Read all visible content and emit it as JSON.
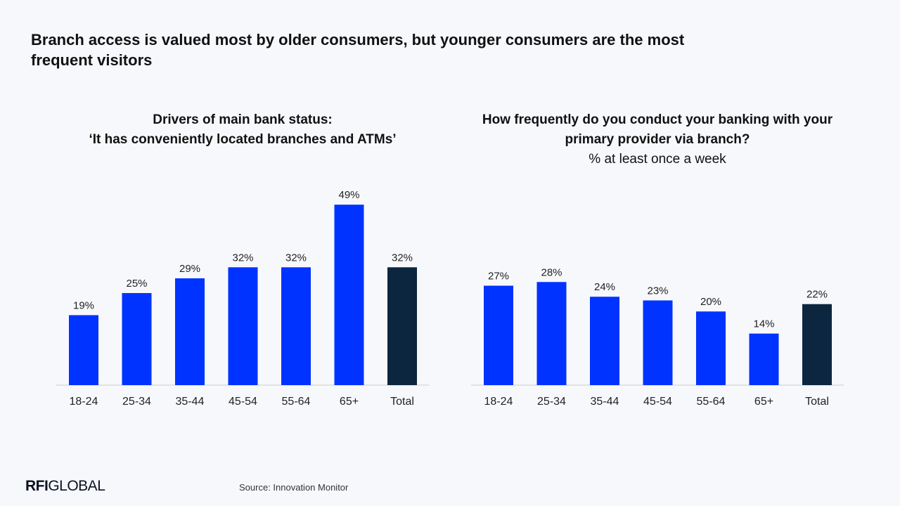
{
  "headline": "Branch access is valued most by older consumers, but younger consumers are the most frequent visitors",
  "colors": {
    "bar": "#0033ff",
    "total_bar": "#0d2640",
    "baseline": "#cccccc"
  },
  "chart_data": [
    {
      "type": "bar",
      "title": "Drivers of main bank status:",
      "subtitle": "‘It has conveniently located branches and ATMs’",
      "categories": [
        "18-24",
        "25-34",
        "35-44",
        "45-54",
        "55-64",
        "65+",
        "Total"
      ],
      "values": [
        19,
        25,
        29,
        32,
        32,
        49,
        32
      ],
      "value_labels": [
        "19%",
        "25%",
        "29%",
        "32%",
        "32%",
        "49%",
        "32%"
      ],
      "highlight_category": "Total",
      "ylim": [
        0,
        50
      ],
      "grid": false,
      "legend": "none"
    },
    {
      "type": "bar",
      "title": "How frequently do you conduct your banking with your primary provider via branch?",
      "subtitle": "% at least once a week",
      "categories": [
        "18-24",
        "25-34",
        "35-44",
        "45-54",
        "55-64",
        "65+",
        "Total"
      ],
      "values": [
        27,
        28,
        24,
        23,
        20,
        14,
        22
      ],
      "value_labels": [
        "27%",
        "28%",
        "24%",
        "23%",
        "20%",
        "14%",
        "22%"
      ],
      "highlight_category": "Total",
      "ylim": [
        0,
        50
      ],
      "grid": false,
      "legend": "none"
    }
  ],
  "footer": {
    "logo_bold": "RFI",
    "logo_rest": "GLOBAL",
    "source": "Source: Innovation Monitor"
  }
}
